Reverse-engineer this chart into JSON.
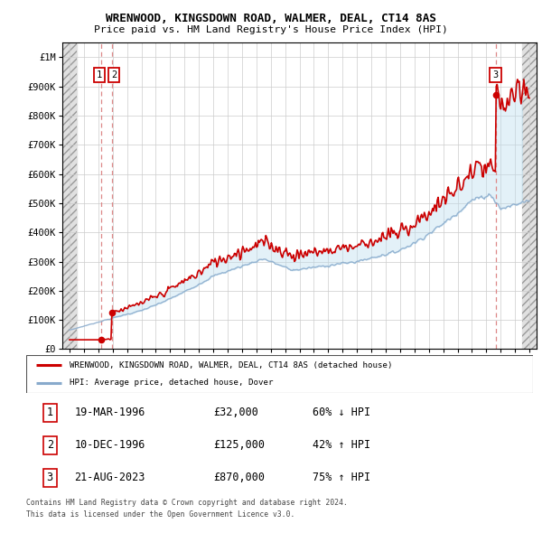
{
  "title": "WRENWOOD, KINGSDOWN ROAD, WALMER, DEAL, CT14 8AS",
  "subtitle": "Price paid vs. HM Land Registry's House Price Index (HPI)",
  "legend_label_red": "WRENWOOD, KINGSDOWN ROAD, WALMER, DEAL, CT14 8AS (detached house)",
  "legend_label_blue": "HPI: Average price, detached house, Dover",
  "footer1": "Contains HM Land Registry data © Crown copyright and database right 2024.",
  "footer2": "This data is licensed under the Open Government Licence v3.0.",
  "sale_dates_num": [
    1996.22,
    1996.94,
    2023.64
  ],
  "sale_prices": [
    32000,
    125000,
    870000
  ],
  "sale_labels": [
    "1",
    "2",
    "3"
  ],
  "sale_info": [
    [
      "1",
      "19-MAR-1996",
      "£32,000",
      "60% ↓ HPI"
    ],
    [
      "2",
      "10-DEC-1996",
      "£125,000",
      "42% ↑ HPI"
    ],
    [
      "3",
      "21-AUG-2023",
      "£870,000",
      "75% ↑ HPI"
    ]
  ],
  "xmin": 1993.5,
  "xmax": 2026.5,
  "ymin": 0,
  "ymax": 1050000,
  "hatch_left_xmax": 1994.5,
  "hatch_right_xmin": 2025.5,
  "red_color": "#cc0000",
  "blue_color": "#88aacc",
  "hatch_bg": "#e0e0e0",
  "hatch_line": "#999999",
  "vline_color": "#dd8888",
  "grid_color": "#cccccc"
}
